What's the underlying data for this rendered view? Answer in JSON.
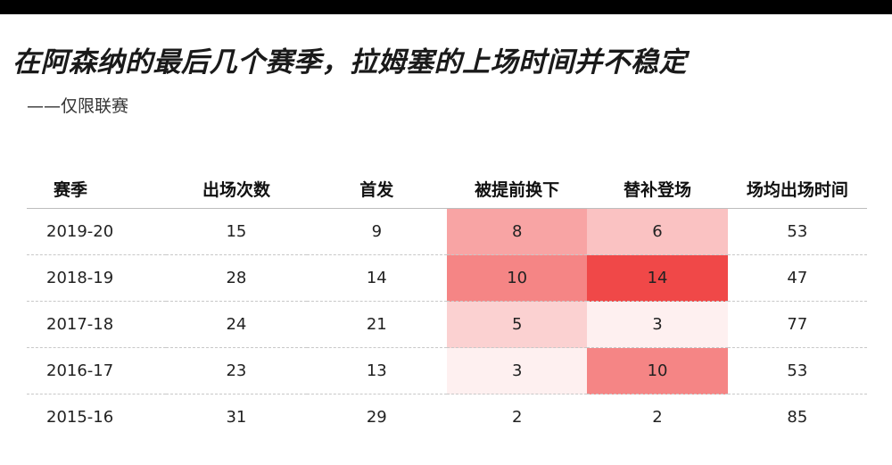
{
  "title": "在阿森纳的最后几个赛季，拉姆塞的上场时间并不稳定",
  "subtitle": "——仅限联赛",
  "chart_data": {
    "type": "table",
    "columns": [
      "赛季",
      "出场次数",
      "首发",
      "被提前换下",
      "替补登场",
      "场均出场时间"
    ],
    "rows": [
      [
        "2019-20",
        "15",
        "9",
        "8",
        "6",
        "53"
      ],
      [
        "2018-19",
        "28",
        "14",
        "10",
        "14",
        "47"
      ],
      [
        "2017-18",
        "24",
        "21",
        "5",
        "3",
        "77"
      ],
      [
        "2016-17",
        "23",
        "13",
        "3",
        "10",
        "53"
      ],
      [
        "2015-16",
        "31",
        "29",
        "2",
        "2",
        "85"
      ]
    ],
    "heatmap_columns": [
      3,
      4
    ],
    "heatmap_scale": {
      "min": 2,
      "max": 14,
      "low_color": "#ffffff",
      "high_color": "#f04848"
    }
  }
}
